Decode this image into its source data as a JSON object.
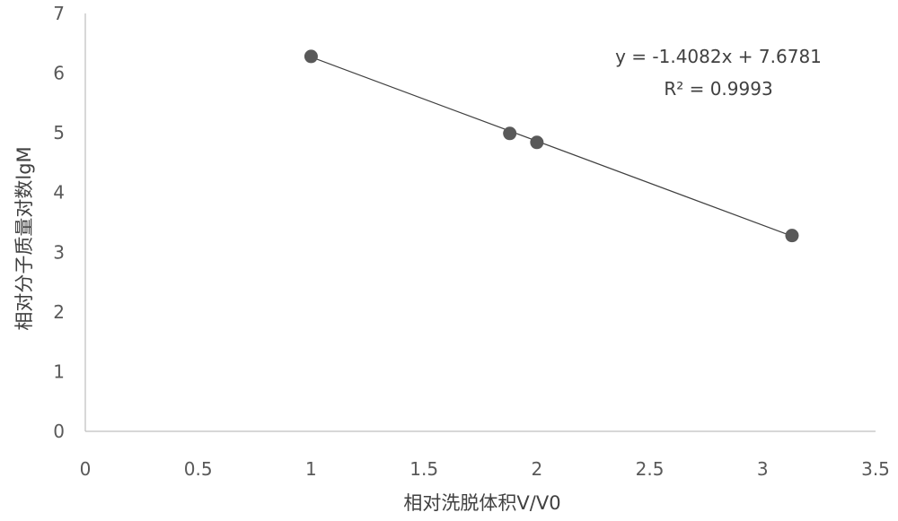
{
  "chart_data": {
    "type": "scatter",
    "title": "",
    "xlabel": "相对洗脱体积V/V0",
    "ylabel": "相对分子质量对数lgM",
    "xlim": [
      0,
      3.5
    ],
    "ylim": [
      0,
      7
    ],
    "x_ticks": [
      "0",
      "0.5",
      "1",
      "1.5",
      "2",
      "2.5",
      "3",
      "3.5"
    ],
    "y_ticks": [
      "0",
      "1",
      "2",
      "3",
      "4",
      "5",
      "6",
      "7"
    ],
    "grid": false,
    "series": [
      {
        "points": [
          {
            "x": 1.0,
            "y": 6.28
          },
          {
            "x": 1.88,
            "y": 4.99
          },
          {
            "x": 2.0,
            "y": 4.84
          },
          {
            "x": 3.13,
            "y": 3.28
          }
        ]
      }
    ],
    "trendline": {
      "slope": -1.4082,
      "intercept": 7.6781,
      "x_range": [
        1.0,
        3.13
      ],
      "equation": "y = -1.4082x + 7.6781",
      "r_squared": "R² = 0.9993"
    },
    "colors": {
      "marker": "#595959",
      "line": "#404040",
      "axis": "#bfbfbf"
    }
  }
}
